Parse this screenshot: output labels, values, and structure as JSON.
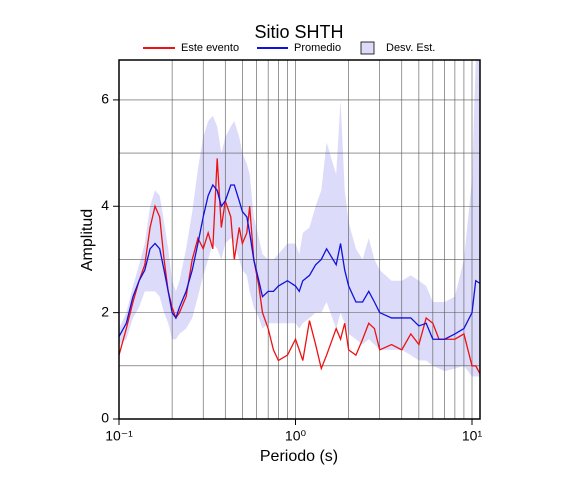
{
  "chart_data": {
    "type": "line",
    "title": "Sitio SHTH",
    "xlabel": "Periodo (s)",
    "ylabel": "Amplitud",
    "xscale": "log",
    "grid": true,
    "xlim": [
      0.1,
      11.1
    ],
    "ylim": [
      0,
      6.75
    ],
    "xticks": [
      {
        "value": 0.1,
        "label": "10⁻¹"
      },
      {
        "value": 1,
        "label": "10⁰"
      },
      {
        "value": 10,
        "label": "10¹"
      }
    ],
    "xminor": [
      0.2,
      0.3,
      0.4,
      0.5,
      0.6,
      0.7,
      0.8,
      0.9,
      2,
      3,
      4,
      5,
      6,
      7,
      8,
      9
    ],
    "yticks": [
      0,
      2,
      4,
      6
    ],
    "yminor": [
      1,
      3,
      5
    ],
    "x": [
      0.1,
      0.11,
      0.12,
      0.13,
      0.14,
      0.15,
      0.16,
      0.17,
      0.18,
      0.19,
      0.2,
      0.21,
      0.22,
      0.24,
      0.26,
      0.28,
      0.3,
      0.32,
      0.34,
      0.36,
      0.38,
      0.4,
      0.43,
      0.45,
      0.48,
      0.5,
      0.53,
      0.55,
      0.58,
      0.62,
      0.65,
      0.7,
      0.75,
      0.8,
      0.9,
      1.0,
      1.05,
      1.1,
      1.2,
      1.3,
      1.4,
      1.5,
      1.7,
      1.8,
      1.9,
      2.0,
      2.2,
      2.4,
      2.6,
      2.8,
      3.0,
      3.5,
      4.0,
      4.5,
      5.0,
      5.5,
      6.0,
      6.5,
      7.0,
      8.0,
      9.0,
      10,
      10.5,
      11.1
    ],
    "series": [
      {
        "name": "Este evento",
        "color": "#ee1111",
        "values": [
          1.2,
          1.7,
          2.2,
          2.6,
          2.9,
          3.6,
          4.0,
          3.8,
          3.0,
          2.4,
          2.1,
          1.9,
          2.0,
          2.3,
          3.0,
          3.4,
          3.2,
          3.5,
          3.2,
          4.9,
          3.6,
          4.1,
          3.8,
          3.0,
          3.6,
          3.3,
          3.5,
          4.0,
          3.0,
          2.5,
          2.0,
          1.7,
          1.3,
          1.1,
          1.2,
          1.5,
          1.3,
          1.1,
          1.85,
          1.4,
          0.95,
          1.2,
          1.7,
          1.5,
          1.8,
          1.3,
          1.2,
          1.5,
          1.8,
          1.7,
          1.3,
          1.4,
          1.3,
          1.6,
          1.4,
          1.9,
          1.8,
          1.5,
          1.5,
          1.5,
          1.6,
          1.0,
          1.0,
          0.85
        ]
      },
      {
        "name": "Promedio",
        "color": "#1111dd",
        "values": [
          1.55,
          1.8,
          2.3,
          2.6,
          2.8,
          3.2,
          3.3,
          3.2,
          2.8,
          2.4,
          2.0,
          1.9,
          2.1,
          2.4,
          2.8,
          3.3,
          3.8,
          4.2,
          4.4,
          4.3,
          4.0,
          4.1,
          4.4,
          4.4,
          4.1,
          3.9,
          3.8,
          3.5,
          3.0,
          2.6,
          2.3,
          2.4,
          2.4,
          2.5,
          2.6,
          2.5,
          2.4,
          2.6,
          2.7,
          2.9,
          3.0,
          3.2,
          2.9,
          3.3,
          2.8,
          2.5,
          2.2,
          2.2,
          2.4,
          2.2,
          2.0,
          1.9,
          1.9,
          1.9,
          1.75,
          1.8,
          1.5,
          1.5,
          1.5,
          1.6,
          1.7,
          2.0,
          2.6,
          2.55
        ]
      }
    ],
    "band": {
      "name": "Desv. Est.",
      "color": "#dcdcfa",
      "lower": [
        1.4,
        1.5,
        1.9,
        2.1,
        2.4,
        2.4,
        2.4,
        2.3,
        2.0,
        1.8,
        1.5,
        1.5,
        1.6,
        1.7,
        1.9,
        2.3,
        2.7,
        3.0,
        3.3,
        3.2,
        3.0,
        3.3,
        3.4,
        3.3,
        3.0,
        2.8,
        2.7,
        2.4,
        2.1,
        1.9,
        1.7,
        1.8,
        1.8,
        1.8,
        1.8,
        1.8,
        1.7,
        1.8,
        1.9,
        2.0,
        2.0,
        2.2,
        1.7,
        2.0,
        1.8,
        1.6,
        1.5,
        1.4,
        1.5,
        1.4,
        1.3,
        1.3,
        1.3,
        1.2,
        1.1,
        1.1,
        1.0,
        0.95,
        0.9,
        0.95,
        1.0,
        0.8,
        0.8,
        0.8
      ],
      "upper": [
        1.7,
        2.0,
        2.5,
        2.9,
        3.3,
        4.0,
        4.3,
        4.2,
        3.7,
        3.2,
        2.6,
        2.4,
        2.6,
        3.2,
        3.9,
        4.7,
        5.3,
        5.6,
        5.7,
        5.5,
        5.0,
        5.3,
        5.5,
        5.6,
        5.3,
        5.0,
        4.8,
        4.6,
        3.8,
        3.4,
        3.1,
        3.0,
        3.0,
        3.1,
        3.3,
        3.3,
        3.1,
        3.5,
        3.6,
        4.0,
        4.3,
        5.2,
        4.6,
        6.0,
        4.3,
        3.7,
        3.2,
        3.0,
        3.4,
        3.0,
        2.8,
        2.6,
        2.6,
        2.7,
        2.6,
        2.5,
        2.2,
        2.2,
        2.2,
        2.3,
        3.0,
        4.5,
        6.75,
        6.75
      ]
    }
  }
}
